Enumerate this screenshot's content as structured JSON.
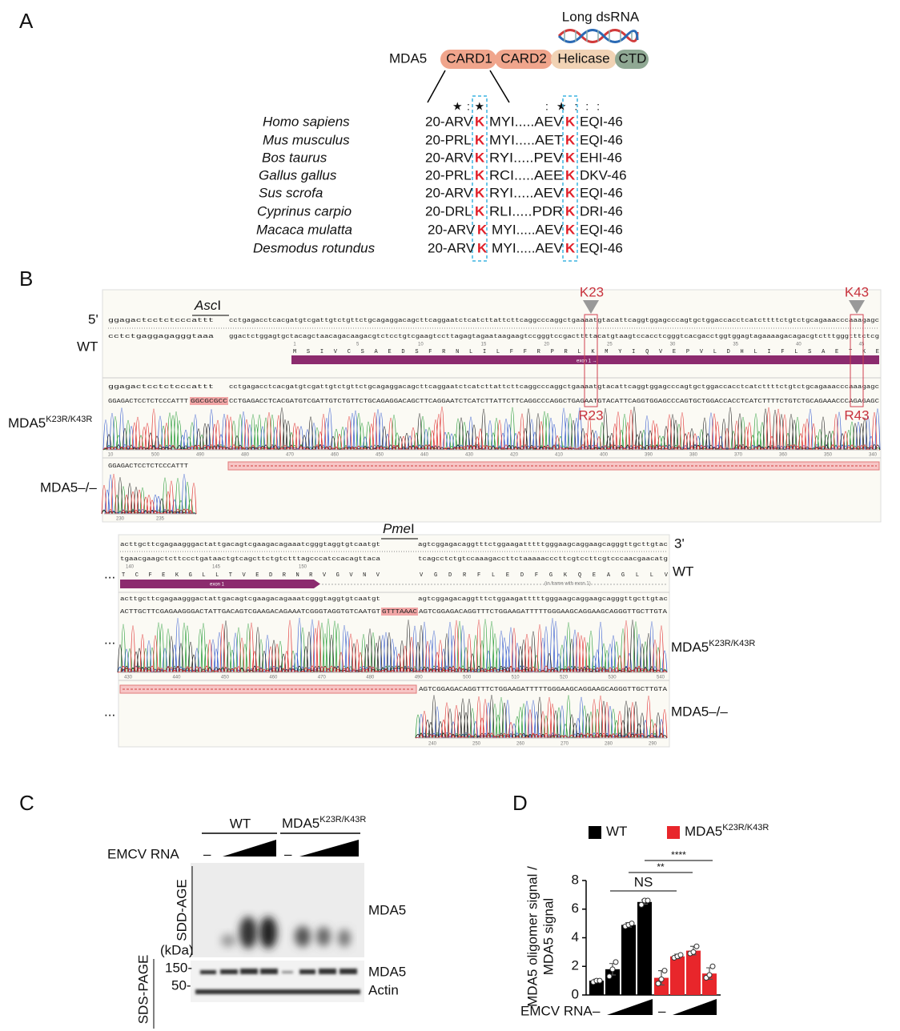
{
  "panel_a": {
    "label": "A",
    "long_dsrna": "Long dsRNA",
    "protein": "MDA5",
    "domains": [
      "CARD1",
      "CARD2",
      "Helicase",
      "CTD"
    ],
    "conservation_left": "★ : ★",
    "conservation_right": ": ★ : : :",
    "species": [
      {
        "name": "Homo sapiens",
        "left": "20-ARV",
        "k1": "K",
        "mid": "MYI.....AEV",
        "k2": "K",
        "right": "EQI-46"
      },
      {
        "name": "Mus musculus",
        "left": "20-PRL",
        "k1": "K",
        "mid": "MYI.....AET",
        "k2": "K",
        "right": "EQI-46"
      },
      {
        "name": "Bos taurus",
        "left": "20-ARV",
        "k1": "K",
        "mid": "RYI.....PEV",
        "k2": "K",
        "right": "EHI-46"
      },
      {
        "name": "Gallus gallus",
        "left": "20-PRL",
        "k1": "K",
        "mid": "RCI.....AEE",
        "k2": "K",
        "right": "DKV-46"
      },
      {
        "name": "Sus scrofa",
        "left": "20-ARV",
        "k1": "K",
        "mid": "RYI.....AEV",
        "k2": "K",
        "right": "EQI-46"
      },
      {
        "name": "Cyprinus carpio",
        "left": "20-DRL",
        "k1": "K",
        "mid": "RLI.....PDR",
        "k2": "K",
        "right": "DRI-46"
      },
      {
        "name": "Macaca mulatta",
        "left": "20-ARV",
        "k1": "K",
        "mid": "MYI.....AEV",
        "k2": "K",
        "right": "EQI-46"
      },
      {
        "name": "Desmodus rotundus",
        "left": "20-ARV",
        "k1": "K",
        "mid": "MYI.....AEV",
        "k2": "K",
        "right": "EQI-46"
      }
    ]
  },
  "panel_b": {
    "label": "B",
    "five_prime": "5'",
    "three_prime": "3'",
    "wt": "WT",
    "ellipsis": "...",
    "mutant": "MDA5",
    "mutant_sup": "K23R/K43R",
    "knockout": "MDA5–/–",
    "enzyme1": {
      "italic": "Asc",
      "roman": "I"
    },
    "enzyme2": {
      "italic": "Pme",
      "roman": "I"
    },
    "k23": "K23",
    "k43": "K43",
    "r23": "R23",
    "r43": "R43",
    "exon": "exon 1 →",
    "exon_short": "exon 1",
    "in_frame": "(in frame with exon 1)",
    "part1": {
      "top_left": "ggagactcctctcccattt",
      "top_right": "cctgagacctcacgatgtcgattgtctgttctgcagaggacagcttcaggaatctcatcttattcttcaggcccaggctgaaaatgtacattcaggtggagcccagtgctggaccacctcatcttttctgtctgcagaaacccaaagagc",
      "bottom_left": "cctctgaggagagggtaaa",
      "bottom_right": "ggactctggagtgctacagctaacagacaagacgtctcctgtcgaagtccttagagtagaataagaagtccgggtccgacttttacatgtaagtccacctcgggtcacgacctggtggagtagaaaagacagacgtctttgggtttctcg",
      "aa": "M S I V C S A E D S F R N L I L F F R P R L K M Y I Q V E P V L D H L I F L S A E T K E",
      "aa_numbers": [
        "1",
        "5",
        "10",
        "15",
        "20",
        "25",
        "30",
        "35",
        "40",
        "45"
      ],
      "read_left": "GGAGACTCCTCTCCCATTT",
      "read_insert": "GGCGCGCC",
      "read_right": "CCTGAGACCTCACGATGTCGATTGTCTGTTCTGCAGAGGACAGCTTCAGGAATCTCATCTTATTCTTCAGGCCCAGGCTGAGAATGTACATTCAGGTGGAGCCCAGTGCTGGACCACCTCATCTTTTCTGTCTGCAGAAACCCAGAGAGC",
      "read_numbers": [
        "10",
        "500",
        "490",
        "480",
        "470",
        "460",
        "450",
        "440",
        "430",
        "420",
        "410",
        "400",
        "390",
        "380",
        "370",
        "360",
        "350",
        "340"
      ],
      "ko_read": "GGAGACTCCTCTCCCATTT",
      "ko_numbers": [
        "230",
        "235"
      ]
    },
    "part2": {
      "top_left": "acttgcttcgagaagggactattgacagtcgaagacagaaatcgggtaggtgtcaatgt",
      "top_right": "agtcggagacaggtttctggaagatttttgggaagcaggaagcagggttgcttgtac",
      "bottom_left": "tgaacgaagctcttccctgataactgtcagcttctgtctttagcccatccacagttaca",
      "bottom_right": "tcagcctctgtccaaagaccttctaaaaacccttcgtccttcgtcccaacgaacatg",
      "aa_left": "T C F E K G L L T V E D R N R V G V N V",
      "aa_right": "V G D R F L E D F G K Q E A G L L V",
      "aa_numbers": [
        "140",
        "145",
        "150"
      ],
      "read_left": "ACTTGCTTCGAGAAGGGACTATTGACAGTCGAAGACAGAAATCGGGTAGGTGTCAATGT",
      "read_insert": "GTTTAAAC",
      "read_right": "AGTCGGAGACAGGTTTCTGGAAGATTTTTGGGAAGCAGGAAGCAGGGTTGCTTGTA",
      "read_numbers": [
        "430",
        "440",
        "450",
        "460",
        "470",
        "480",
        "490",
        "500",
        "510",
        "520",
        "530",
        "540"
      ],
      "ko_read": "AGTCGGAGACAGGTTTCTGGAAGATTTTTGGGAAGCAGGAAGCAGGGTTGCTTGTA",
      "ko_numbers": [
        "240",
        "250",
        "260",
        "270",
        "280",
        "290"
      ]
    }
  },
  "panel_c": {
    "label": "C",
    "wt": "WT",
    "mutant": "MDA5",
    "mutant_sup": "K23R/K43R",
    "emcv": "EMCV RNA",
    "none": "–",
    "sdd": "SDD-AGE",
    "sds": "SDS-PAGE",
    "kda": "(kDa)",
    "mw": [
      "150-",
      "50-"
    ],
    "bands": [
      "MDA5",
      "MDA5",
      "Actin"
    ]
  },
  "chart_data": {
    "type": "bar",
    "label": "D",
    "ylabel": [
      "MDA5 oligomer signal /",
      "MDA5 signal"
    ],
    "xlabel": "EMCV RNA",
    "none": "–",
    "categories": [
      null,
      null,
      null,
      null
    ],
    "series": [
      {
        "name": "WT",
        "color": "#000000",
        "values": [
          1.0,
          1.8,
          4.9,
          6.5
        ],
        "errors": [
          0.1,
          0.4,
          0.15,
          0.15
        ],
        "points": [
          [
            0.9,
            1.0,
            1.0
          ],
          [
            1.3,
            1.8,
            2.3
          ],
          [
            4.8,
            4.9,
            5.0
          ],
          [
            6.3,
            6.6,
            6.6
          ]
        ]
      },
      {
        "name": "MDA5",
        "name_sup": "K23R/K43R",
        "color": "#e8262b",
        "values": [
          1.2,
          2.7,
          3.1,
          1.5
        ],
        "errors": [
          0.5,
          0.15,
          0.3,
          0.4
        ],
        "points": [
          [
            0.8,
            1.1,
            1.7
          ],
          [
            2.6,
            2.7,
            2.8
          ],
          [
            2.9,
            3.0,
            3.4
          ],
          [
            1.2,
            1.4,
            2.0
          ]
        ]
      }
    ],
    "ylim": [
      0,
      8
    ],
    "yticks": [
      0,
      2,
      4,
      6,
      8
    ],
    "annotations": [
      "NS",
      "**",
      "****"
    ]
  }
}
